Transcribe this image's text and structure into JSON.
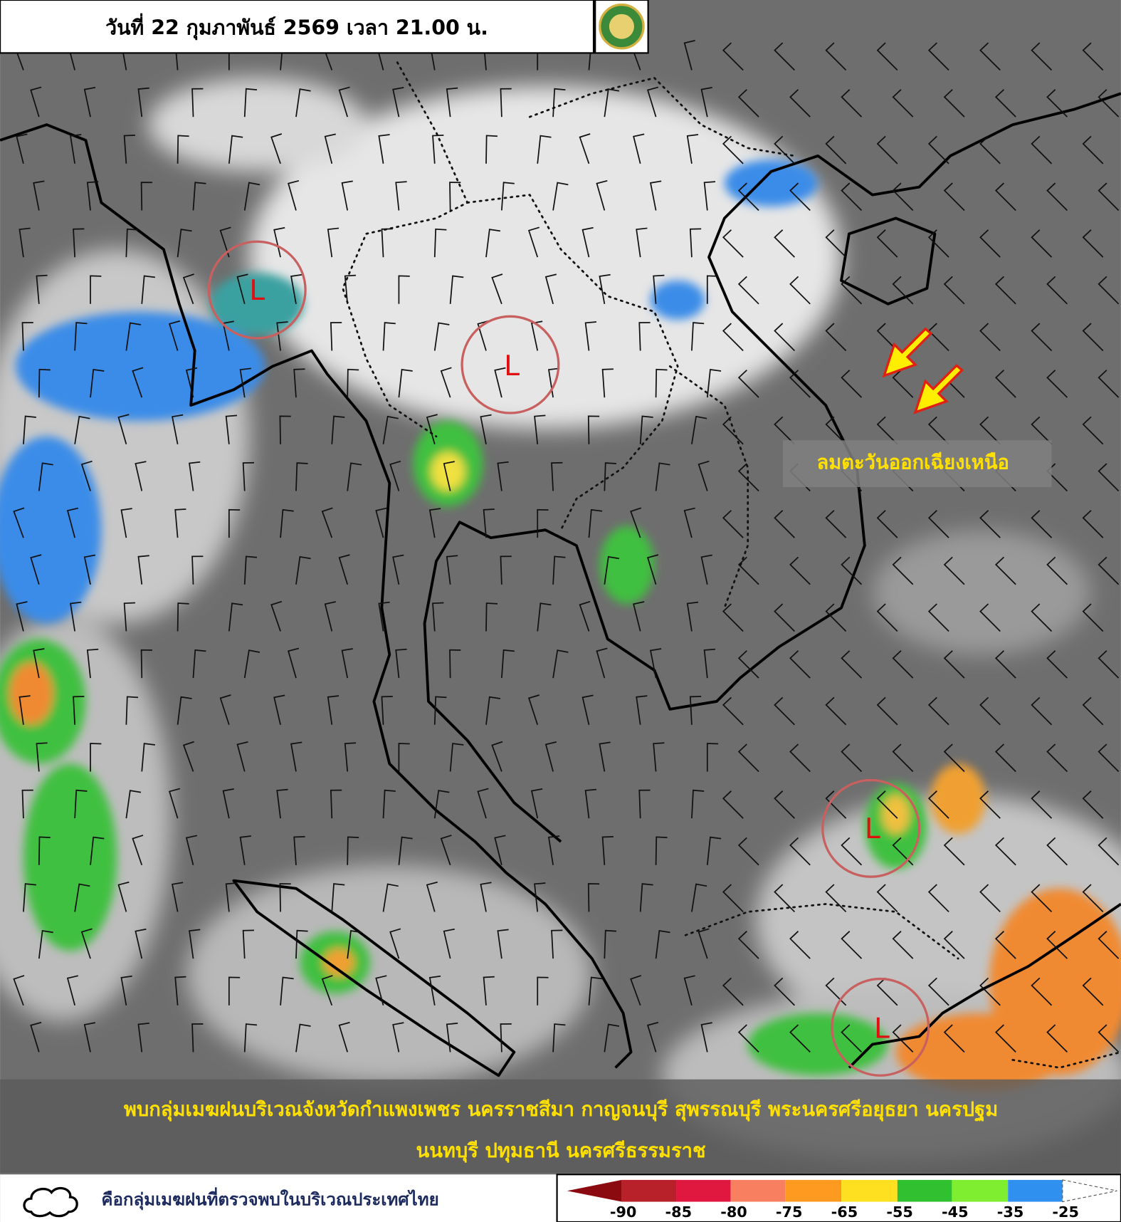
{
  "header": {
    "title": "วันที่ 22 กุมภาพันธ์ 2569 เวลา 21.00 น."
  },
  "map": {
    "lows": [
      "L",
      "L",
      "L",
      "L"
    ],
    "wind_label": "ลมตะวันออกเฉียงเหนือ"
  },
  "summary": {
    "lines": [
      "พบกลุ่มเมฆฝนบริเวณจังหวัดกำแพงเพชร นครราชสีมา กาญจนบุรี สุพรรณบุรี พระนครศรีอยุธยา นครปฐม",
      "นนทบุรี ปทุมธานี นครศรีธรรมราช"
    ]
  },
  "legend": {
    "label": "คือกลุ่มเมฆฝนที่ตรวจพบในบริเวณประเทศไทย"
  },
  "colorbar": {
    "ticks": [
      -90,
      -85,
      -80,
      -75,
      -65,
      -55,
      -45,
      -35,
      -25
    ]
  }
}
